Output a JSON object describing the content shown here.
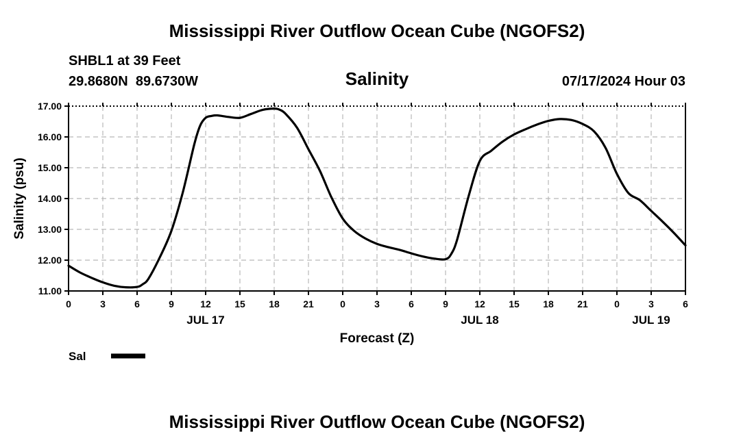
{
  "header": {
    "title": "Mississippi River Outflow Ocean Cube (NGOFS2)",
    "station": "SHBL1 at 39 Feet",
    "coords": "29.8680N  89.6730W",
    "variable": "Salinity",
    "datetime": "07/17/2024 Hour 03"
  },
  "footer": {
    "title": "Mississippi River Outflow Ocean Cube (NGOFS2)"
  },
  "chart_data": {
    "type": "line",
    "title": "Salinity",
    "xlabel": "Forecast (Z)",
    "ylabel": "Salinity (psu)",
    "ylim": [
      11.0,
      17.0
    ],
    "xlim": [
      0,
      54
    ],
    "x_unit": "forecast hours from 07/17/2024 00Z",
    "grid": true,
    "legend_position": "bottom-left",
    "y_ticks": [
      "11.00",
      "12.00",
      "13.00",
      "14.00",
      "15.00",
      "16.00",
      "17.00"
    ],
    "x_ticks": [
      {
        "x": 0,
        "label": "0"
      },
      {
        "x": 3,
        "label": "3"
      },
      {
        "x": 6,
        "label": "6"
      },
      {
        "x": 9,
        "label": "9"
      },
      {
        "x": 12,
        "label": "12"
      },
      {
        "x": 15,
        "label": "15"
      },
      {
        "x": 18,
        "label": "18"
      },
      {
        "x": 21,
        "label": "21"
      },
      {
        "x": 24,
        "label": "0"
      },
      {
        "x": 27,
        "label": "3"
      },
      {
        "x": 30,
        "label": "6"
      },
      {
        "x": 33,
        "label": "9"
      },
      {
        "x": 36,
        "label": "12"
      },
      {
        "x": 39,
        "label": "15"
      },
      {
        "x": 42,
        "label": "18"
      },
      {
        "x": 45,
        "label": "21"
      },
      {
        "x": 48,
        "label": "0"
      },
      {
        "x": 51,
        "label": "3"
      },
      {
        "x": 54,
        "label": "6"
      }
    ],
    "day_labels": [
      {
        "x": 12,
        "label": "JUL 17"
      },
      {
        "x": 36,
        "label": "JUL 18"
      },
      {
        "x": 51,
        "label": "JUL 19"
      }
    ],
    "series": [
      {
        "name": "Sal",
        "color": "#000000",
        "x": [
          0,
          1,
          2,
          3,
          4,
          5,
          6,
          6.5,
          7,
          8,
          9,
          10,
          11,
          11.5,
          12,
          12.5,
          13,
          14,
          15,
          16,
          17,
          18,
          18.5,
          19,
          20,
          21,
          22,
          23,
          24,
          25,
          26,
          27,
          28,
          29,
          30,
          31,
          32,
          33,
          33.5,
          34,
          35,
          36,
          37,
          38,
          39,
          40,
          41,
          42,
          43,
          44,
          45,
          46,
          47,
          48,
          49,
          50,
          51,
          52,
          53,
          54
        ],
        "y": [
          11.82,
          11.6,
          11.43,
          11.28,
          11.17,
          11.12,
          11.13,
          11.22,
          11.4,
          12.1,
          12.95,
          14.2,
          15.75,
          16.35,
          16.62,
          16.68,
          16.7,
          16.65,
          16.62,
          16.75,
          16.88,
          16.92,
          16.88,
          16.75,
          16.3,
          15.6,
          14.9,
          14.05,
          13.35,
          12.95,
          12.7,
          12.53,
          12.42,
          12.33,
          12.22,
          12.12,
          12.05,
          12.03,
          12.2,
          12.65,
          14.05,
          15.22,
          15.55,
          15.85,
          16.08,
          16.25,
          16.4,
          16.52,
          16.58,
          16.55,
          16.42,
          16.18,
          15.65,
          14.8,
          14.18,
          13.95,
          13.6,
          13.25,
          12.88,
          12.48
        ]
      }
    ]
  }
}
